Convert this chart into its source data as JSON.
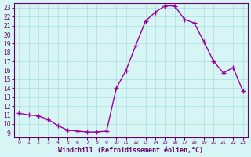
{
  "x": [
    0,
    1,
    2,
    3,
    4,
    5,
    6,
    7,
    8,
    9,
    10,
    11,
    12,
    13,
    14,
    15,
    16,
    17,
    18,
    19,
    20,
    21,
    22,
    23
  ],
  "y": [
    11.2,
    11.0,
    10.9,
    10.5,
    9.8,
    9.3,
    9.2,
    9.1,
    9.1,
    9.2,
    14.0,
    16.0,
    18.8,
    21.5,
    22.5,
    23.2,
    23.2,
    21.7,
    21.3,
    19.2,
    17.0,
    15.7,
    16.3,
    13.7
  ],
  "xlim": [
    -0.5,
    23.5
  ],
  "ylim": [
    8.5,
    23.5
  ],
  "yticks": [
    9,
    10,
    11,
    12,
    13,
    14,
    15,
    16,
    17,
    18,
    19,
    20,
    21,
    22,
    23
  ],
  "xticks": [
    0,
    1,
    2,
    3,
    4,
    5,
    6,
    7,
    8,
    9,
    10,
    11,
    12,
    13,
    14,
    15,
    16,
    17,
    18,
    19,
    20,
    21,
    22,
    23
  ],
  "xlabel": "Windchill (Refroidissement éolien,°C)",
  "line_color": "#990099",
  "marker": "+",
  "bg_color": "#d8f5f5",
  "grid_color": "#aadddd",
  "axis_label_color": "#660066",
  "tick_color": "#660066"
}
